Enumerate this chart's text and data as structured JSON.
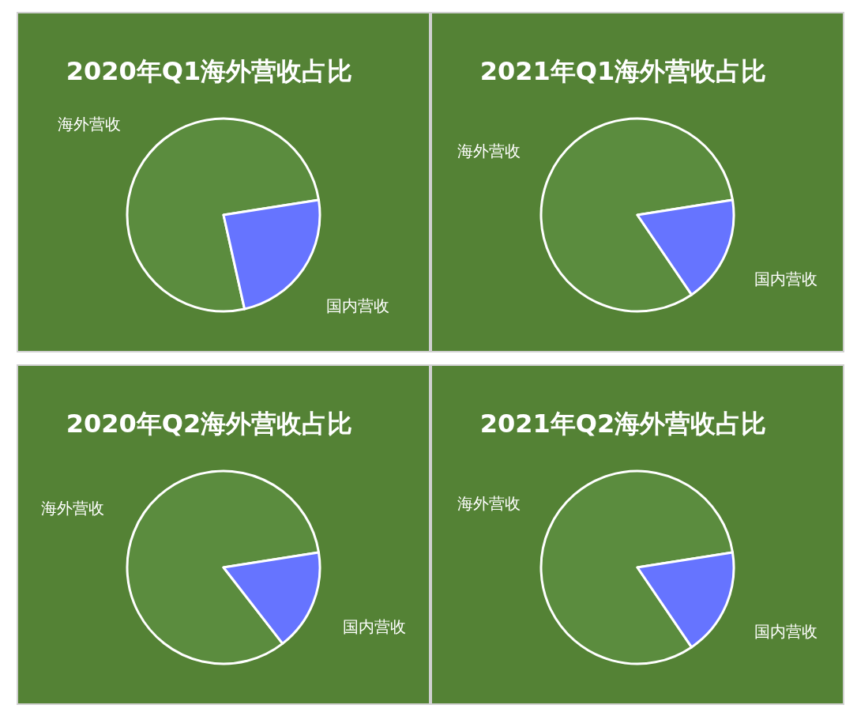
{
  "chart_data": [
    {
      "type": "pie",
      "title": "2020年Q1海外营收占比",
      "categories": [
        "海外营收",
        "国内营收"
      ],
      "values": [
        76,
        24
      ],
      "colors": [
        "#5b8c3e",
        "#6674ff"
      ]
    },
    {
      "type": "pie",
      "title": "2021年Q1海外营收占比",
      "categories": [
        "海外营收",
        "国内营收"
      ],
      "values": [
        82,
        18
      ],
      "colors": [
        "#5b8c3e",
        "#6674ff"
      ]
    },
    {
      "type": "pie",
      "title": "2020年Q2海外营收占比",
      "categories": [
        "海外营收",
        "国内营收"
      ],
      "values": [
        83,
        17
      ],
      "colors": [
        "#5b8c3e",
        "#6674ff"
      ]
    },
    {
      "type": "pie",
      "title": "2021年Q2海外营收占比",
      "categories": [
        "海外营收",
        "国内营收"
      ],
      "values": [
        82,
        18
      ],
      "colors": [
        "#5b8c3e",
        "#6674ff"
      ]
    }
  ]
}
